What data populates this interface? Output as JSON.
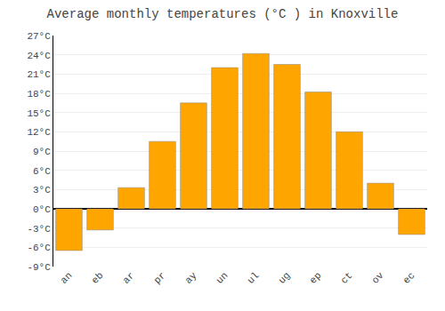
{
  "chart_data": {
    "type": "bar",
    "title": "Average monthly temperatures (°C ) in Knoxville",
    "categories": [
      "an",
      "eb",
      "ar",
      "pr",
      "ay",
      "un",
      "ul",
      "ug",
      "ep",
      "ct",
      "ov",
      "ec"
    ],
    "values": [
      -6.5,
      -3.3,
      3.3,
      10.5,
      16.5,
      22.0,
      24.2,
      22.5,
      18.2,
      12.0,
      4.0,
      -4.0
    ],
    "color": "#FFA500",
    "ylim": [
      -9,
      27
    ],
    "yticks": [
      {
        "value": -9,
        "label": "-9°C"
      },
      {
        "value": -6,
        "label": "-6°C"
      },
      {
        "value": -3,
        "label": "-3°C"
      },
      {
        "value": 0,
        "label": "0°C"
      },
      {
        "value": 3,
        "label": "3°C"
      },
      {
        "value": 6,
        "label": "6°C"
      },
      {
        "value": 9,
        "label": "9°C"
      },
      {
        "value": 12,
        "label": "12°C"
      },
      {
        "value": 15,
        "label": "15°C"
      },
      {
        "value": 18,
        "label": "18°C"
      },
      {
        "value": 21,
        "label": "21°C"
      },
      {
        "value": 24,
        "label": "24°C"
      },
      {
        "value": 27,
        "label": "27°C"
      }
    ],
    "grid": true
  }
}
